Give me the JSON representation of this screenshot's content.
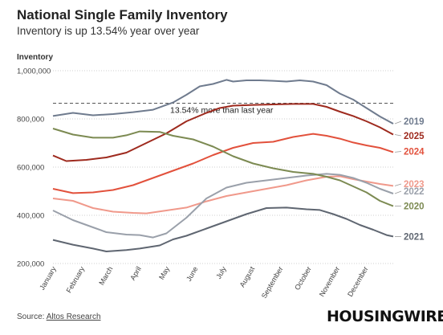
{
  "header": {
    "title": "National Single Family Inventory",
    "subtitle": "Inventory is up 13.54% year over year"
  },
  "footer": {
    "source_prefix": "Source: ",
    "source_name": "Altos Research",
    "brand": "HOUSINGWIRE"
  },
  "chart_data": {
    "type": "line",
    "title": "National Single Family Inventory",
    "subtitle": "Inventory is up 13.54% year over year",
    "ylabel": "Inventory",
    "xlabel": "",
    "ylim": [
      200000,
      1000000
    ],
    "yticks": [
      200000,
      400000,
      600000,
      800000,
      1000000
    ],
    "ytick_labels": [
      "200,000",
      "400,000",
      "600,000",
      "800,000",
      "1,000,000"
    ],
    "x_tick_labels": [
      "January",
      "February",
      "March",
      "April",
      "May",
      "June",
      "July",
      "August",
      "September",
      "October",
      "November",
      "December"
    ],
    "week_count": 52,
    "grid": "horizontal dotted",
    "annotation": {
      "text": "13.54% more than last year",
      "value": 865000,
      "style": "dashed"
    },
    "series": [
      {
        "name": "2019",
        "color": "#6f7b8e",
        "label_value": 790000,
        "values": [
          [
            0,
            812000
          ],
          [
            3,
            825000
          ],
          [
            6,
            815000
          ],
          [
            9,
            820000
          ],
          [
            12,
            828000
          ],
          [
            15,
            838000
          ],
          [
            18,
            868000
          ],
          [
            20,
            900000
          ],
          [
            22,
            935000
          ],
          [
            24,
            945000
          ],
          [
            26,
            962000
          ],
          [
            27,
            955000
          ],
          [
            29,
            960000
          ],
          [
            31,
            960000
          ],
          [
            33,
            958000
          ],
          [
            35,
            955000
          ],
          [
            37,
            960000
          ],
          [
            39,
            955000
          ],
          [
            41,
            940000
          ],
          [
            43,
            905000
          ],
          [
            45,
            880000
          ],
          [
            47,
            845000
          ],
          [
            49,
            810000
          ],
          [
            51,
            780000
          ]
        ]
      },
      {
        "name": "2025",
        "color": "#9e2a1e",
        "label_value": 730000,
        "values": [
          [
            0,
            648000
          ],
          [
            2,
            625000
          ],
          [
            5,
            630000
          ],
          [
            8,
            640000
          ],
          [
            11,
            660000
          ],
          [
            14,
            700000
          ],
          [
            17,
            740000
          ],
          [
            20,
            790000
          ],
          [
            23,
            825000
          ],
          [
            25,
            845000
          ],
          [
            27,
            855000
          ],
          [
            30,
            858000
          ],
          [
            33,
            860000
          ],
          [
            36,
            862000
          ],
          [
            39,
            862000
          ],
          [
            41,
            850000
          ],
          [
            43,
            830000
          ],
          [
            45,
            812000
          ],
          [
            47,
            790000
          ],
          [
            49,
            765000
          ],
          [
            51,
            735000
          ]
        ]
      },
      {
        "name": "2024",
        "color": "#e2513c",
        "label_value": 665000,
        "values": [
          [
            0,
            510000
          ],
          [
            3,
            492000
          ],
          [
            6,
            495000
          ],
          [
            9,
            505000
          ],
          [
            12,
            525000
          ],
          [
            15,
            555000
          ],
          [
            18,
            585000
          ],
          [
            21,
            615000
          ],
          [
            24,
            650000
          ],
          [
            27,
            680000
          ],
          [
            30,
            700000
          ],
          [
            33,
            705000
          ],
          [
            36,
            725000
          ],
          [
            39,
            738000
          ],
          [
            41,
            730000
          ],
          [
            43,
            718000
          ],
          [
            45,
            702000
          ],
          [
            47,
            690000
          ],
          [
            49,
            680000
          ],
          [
            51,
            662000
          ]
        ]
      },
      {
        "name": "2023",
        "color": "#f0998b",
        "label_value": 530000,
        "values": [
          [
            0,
            470000
          ],
          [
            3,
            460000
          ],
          [
            6,
            430000
          ],
          [
            9,
            415000
          ],
          [
            12,
            410000
          ],
          [
            14,
            408000
          ],
          [
            17,
            420000
          ],
          [
            20,
            432000
          ],
          [
            23,
            458000
          ],
          [
            26,
            480000
          ],
          [
            29,
            495000
          ],
          [
            32,
            510000
          ],
          [
            35,
            525000
          ],
          [
            38,
            545000
          ],
          [
            41,
            560000
          ],
          [
            43,
            562000
          ],
          [
            45,
            550000
          ],
          [
            47,
            540000
          ],
          [
            49,
            530000
          ],
          [
            51,
            522000
          ]
        ]
      },
      {
        "name": "2022",
        "color": "#9aa0aa",
        "label_value": 500000,
        "values": [
          [
            0,
            420000
          ],
          [
            3,
            380000
          ],
          [
            6,
            350000
          ],
          [
            8,
            330000
          ],
          [
            11,
            320000
          ],
          [
            13,
            318000
          ],
          [
            15,
            308000
          ],
          [
            17,
            325000
          ],
          [
            20,
            390000
          ],
          [
            23,
            470000
          ],
          [
            26,
            515000
          ],
          [
            29,
            535000
          ],
          [
            32,
            545000
          ],
          [
            35,
            555000
          ],
          [
            38,
            565000
          ],
          [
            41,
            572000
          ],
          [
            43,
            568000
          ],
          [
            45,
            555000
          ],
          [
            47,
            535000
          ],
          [
            49,
            510000
          ],
          [
            51,
            490000
          ]
        ]
      },
      {
        "name": "2020",
        "color": "#7c8a52",
        "label_value": 438000,
        "values": [
          [
            0,
            760000
          ],
          [
            3,
            735000
          ],
          [
            6,
            722000
          ],
          [
            9,
            722000
          ],
          [
            11,
            732000
          ],
          [
            13,
            748000
          ],
          [
            16,
            746000
          ],
          [
            18,
            730000
          ],
          [
            21,
            715000
          ],
          [
            24,
            685000
          ],
          [
            27,
            645000
          ],
          [
            30,
            615000
          ],
          [
            33,
            595000
          ],
          [
            36,
            580000
          ],
          [
            39,
            572000
          ],
          [
            41,
            560000
          ],
          [
            43,
            545000
          ],
          [
            45,
            520000
          ],
          [
            47,
            495000
          ],
          [
            49,
            460000
          ],
          [
            51,
            438000
          ]
        ]
      },
      {
        "name": "2021",
        "color": "#5f6671",
        "label_value": 312000,
        "values": [
          [
            0,
            298000
          ],
          [
            3,
            278000
          ],
          [
            6,
            262000
          ],
          [
            8,
            250000
          ],
          [
            11,
            256000
          ],
          [
            13,
            262000
          ],
          [
            16,
            275000
          ],
          [
            18,
            300000
          ],
          [
            20,
            315000
          ],
          [
            23,
            345000
          ],
          [
            26,
            375000
          ],
          [
            29,
            405000
          ],
          [
            32,
            430000
          ],
          [
            35,
            432000
          ],
          [
            38,
            425000
          ],
          [
            40,
            422000
          ],
          [
            42,
            405000
          ],
          [
            44,
            385000
          ],
          [
            46,
            360000
          ],
          [
            48,
            340000
          ],
          [
            50,
            318000
          ],
          [
            51,
            312000
          ]
        ]
      }
    ]
  }
}
